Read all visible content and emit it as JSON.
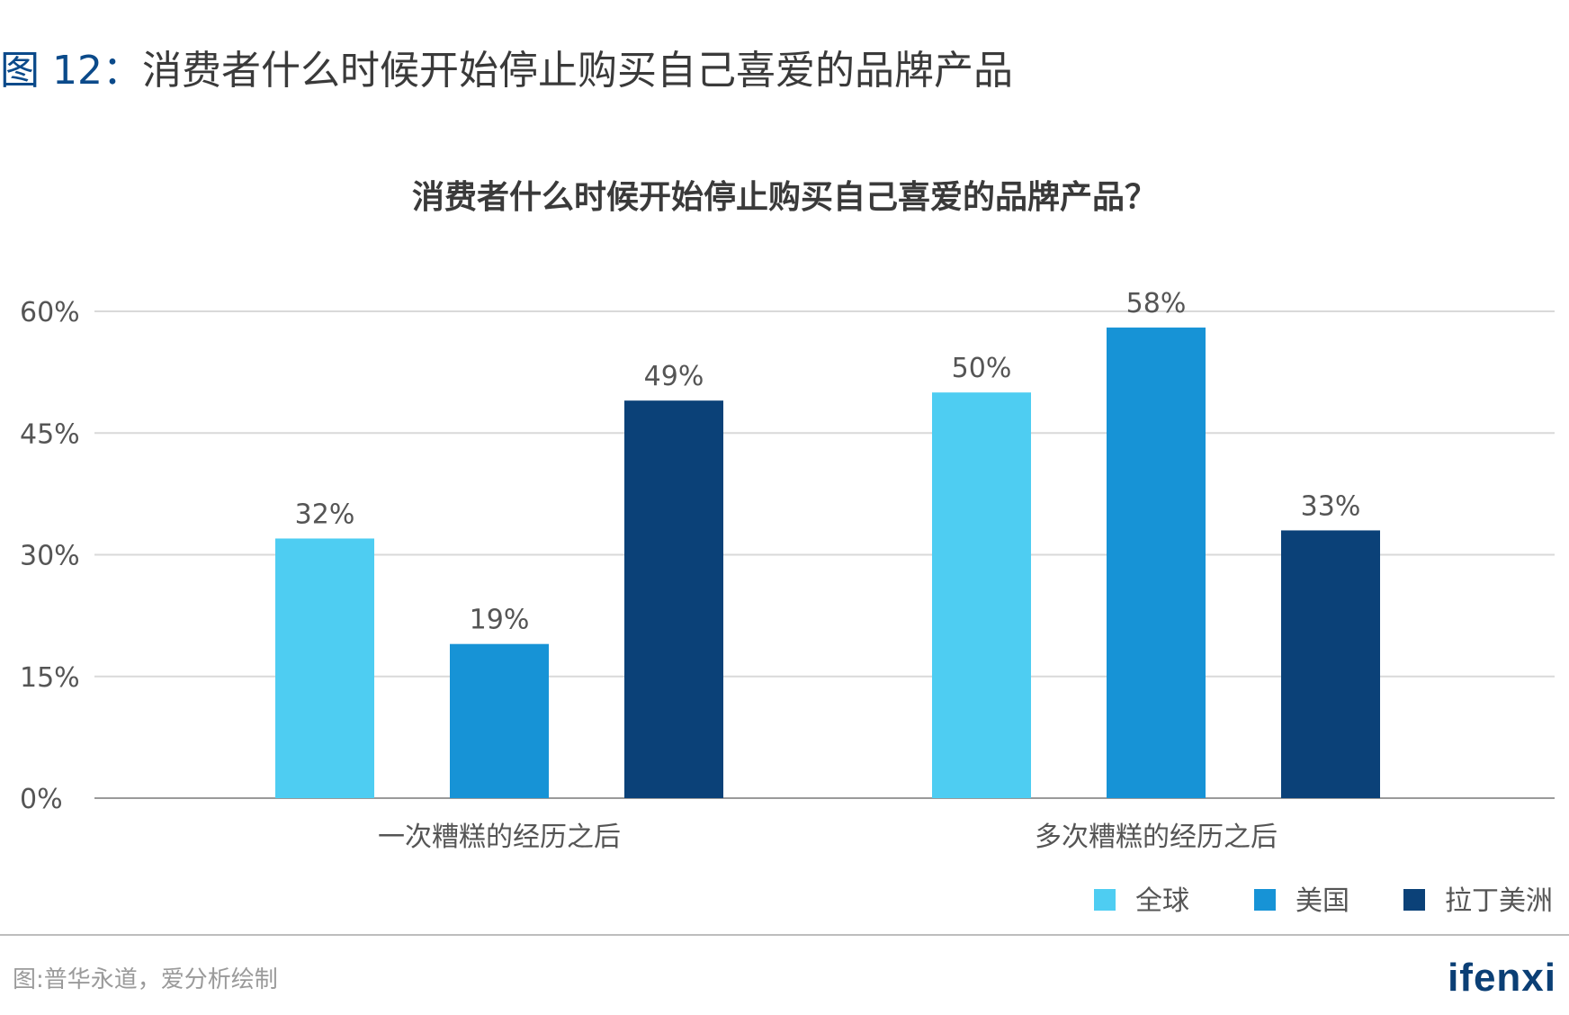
{
  "figure": {
    "number": "图 12：",
    "title": "消费者什么时候开始停止购买自己喜爱的品牌产品"
  },
  "footer": {
    "source": "图:普华永道，爱分析绘制",
    "logo": "ifenxi"
  },
  "chart_data": {
    "type": "bar",
    "title": "消费者什么时候开始停止购买自己喜爱的品牌产品？",
    "xlabel": "",
    "ylabel": "",
    "categories": [
      "一次糟糕的经历之后",
      "多次糟糕的经历之后"
    ],
    "series": [
      {
        "name": "全球",
        "values": [
          32,
          50
        ],
        "color": "#4ecdf2"
      },
      {
        "name": "美国",
        "values": [
          19,
          58
        ],
        "color": "#1793d6"
      },
      {
        "name": "拉丁美洲",
        "values": [
          49,
          33
        ],
        "color": "#0b4178"
      }
    ],
    "ylim": [
      0,
      60
    ],
    "yticks": [
      "0%",
      "15%",
      "30%",
      "45%",
      "60%"
    ],
    "ytick_values": [
      0,
      15,
      30,
      45,
      60
    ],
    "data_labels": [
      [
        "32%",
        "50%"
      ],
      [
        "19%",
        "58%"
      ],
      [
        "49%",
        "33%"
      ]
    ],
    "grid": true,
    "legend": "bottom-right",
    "axis_color": "#9a9a9a",
    "grid_color": "#d9d9d9",
    "text_color": "#555555"
  }
}
